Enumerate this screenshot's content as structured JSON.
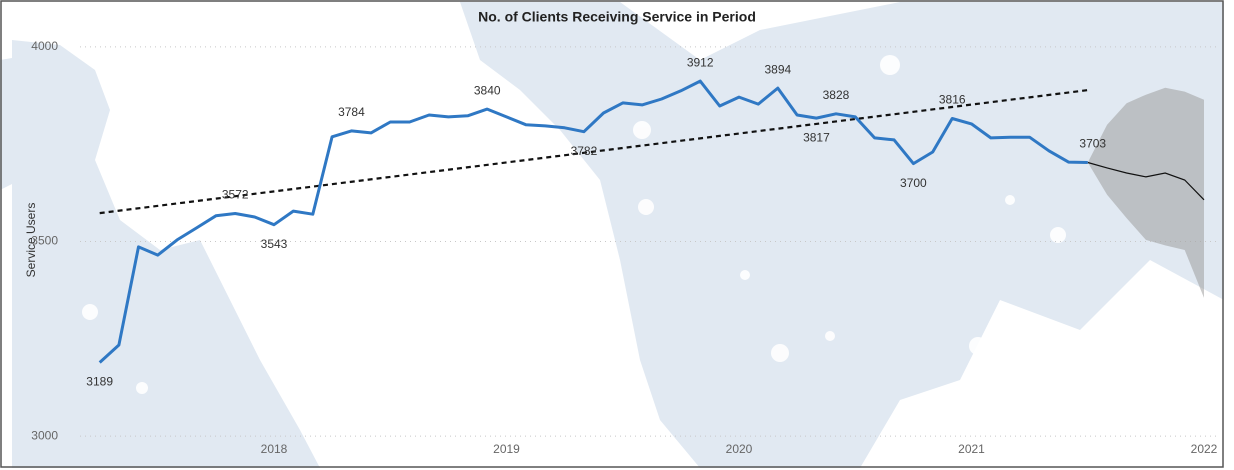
{
  "chart_data": {
    "type": "line",
    "title": "No. of Clients Receiving Service in Period",
    "y_label": "Service Users",
    "x": [
      2017.25,
      2017.333,
      2017.417,
      2017.5,
      2017.583,
      2017.667,
      2017.75,
      2017.833,
      2017.917,
      2018,
      2018.083,
      2018.167,
      2018.25,
      2018.333,
      2018.417,
      2018.5,
      2018.583,
      2018.667,
      2018.75,
      2018.833,
      2018.917,
      2019,
      2019.083,
      2019.167,
      2019.25,
      2019.333,
      2019.417,
      2019.5,
      2019.583,
      2019.667,
      2019.75,
      2019.833,
      2019.917,
      2020,
      2020.083,
      2020.167,
      2020.25,
      2020.333,
      2020.417,
      2020.5,
      2020.583,
      2020.667,
      2020.75,
      2020.833,
      2020.917,
      2021,
      2021.083,
      2021.167,
      2021.25,
      2021.333,
      2021.417,
      2021.5
    ],
    "series": [
      {
        "color": "#2f78c4",
        "values": [
          3189,
          3234,
          3486,
          3465,
          3504,
          3535,
          3566,
          3572,
          3563,
          3543,
          3578,
          3570,
          3769,
          3784,
          3779,
          3807,
          3807,
          3825,
          3820,
          3823,
          3840,
          3820,
          3800,
          3797,
          3792,
          3782,
          3830,
          3856,
          3851,
          3866,
          3887,
          3912,
          3848,
          3871,
          3853,
          3894,
          3825,
          3817,
          3828,
          3820,
          3766,
          3761,
          3700,
          3730,
          3816,
          3802,
          3766,
          3768,
          3768,
          3733,
          3704,
          3703
        ]
      }
    ],
    "data_labels": [
      0,
      7,
      9,
      13,
      20,
      25,
      31,
      35,
      37,
      38,
      42,
      44,
      51
    ],
    "trend": {
      "x": [
        2017.25,
        2021.5
      ],
      "values": [
        3573,
        3889
      ],
      "color": "#111111"
    },
    "forecast": {
      "x": [
        2021.5,
        2021.583,
        2021.667,
        2021.75,
        2021.833,
        2021.917,
        2022
      ],
      "values": [
        3703,
        3689,
        3676,
        3666,
        3676,
        3658,
        3607
      ],
      "upper": [
        3703,
        3800,
        3855,
        3877,
        3895,
        3885,
        3864
      ],
      "lower": [
        3703,
        3620,
        3560,
        3504,
        3490,
        3478,
        3355
      ],
      "color": "#111111",
      "band_color": "#9e9e9e"
    },
    "xlim": [
      2016.873,
      2022.086
    ],
    "ylim": [
      2990,
      4069
    ],
    "xticks": [
      2018,
      2019,
      2020,
      2021,
      2022
    ],
    "yticks": [
      3000,
      3500,
      4000
    ],
    "grid": true
  }
}
